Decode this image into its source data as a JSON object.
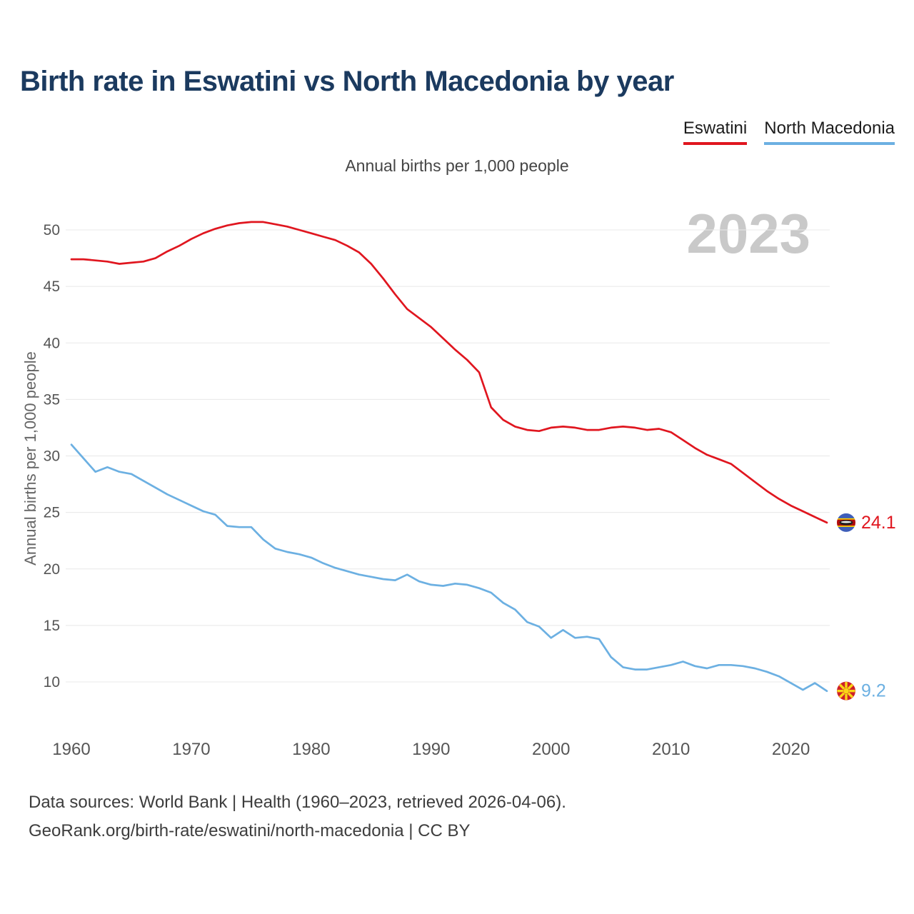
{
  "header": {
    "title": "Birth rate in Eswatini vs North Macedonia by year"
  },
  "legend": {
    "items": [
      {
        "label": "Eswatini",
        "color": "#e0161f"
      },
      {
        "label": "North Macedonia",
        "color": "#6cb0e2"
      }
    ]
  },
  "footer": {
    "line1": "Data sources: World Bank | Health (1960–2023, retrieved 2026-04-06).",
    "line2": "GeoRank.org/birth-rate/eswatini/north-macedonia | CC BY"
  },
  "chart_data": {
    "type": "line",
    "title": "Birth rate in Eswatini vs North Macedonia by year",
    "subtitle": "Annual births per 1,000 people",
    "ylabel": "Annual births per 1,000 people",
    "watermark": "2023",
    "grid": "horizontal",
    "legend_position": "top-right",
    "x_ticks": [
      1960,
      1970,
      1980,
      1990,
      2000,
      2010,
      2020
    ],
    "y_ticks": [
      10,
      15,
      20,
      25,
      30,
      35,
      40,
      45,
      50
    ],
    "ylim": [
      8,
      52
    ],
    "years": [
      1960,
      1961,
      1962,
      1963,
      1964,
      1965,
      1966,
      1967,
      1968,
      1969,
      1970,
      1971,
      1972,
      1973,
      1974,
      1975,
      1976,
      1977,
      1978,
      1979,
      1980,
      1981,
      1982,
      1983,
      1984,
      1985,
      1986,
      1987,
      1988,
      1989,
      1990,
      1991,
      1992,
      1993,
      1994,
      1995,
      1996,
      1997,
      1998,
      1999,
      2000,
      2001,
      2002,
      2003,
      2004,
      2005,
      2006,
      2007,
      2008,
      2009,
      2010,
      2011,
      2012,
      2013,
      2014,
      2015,
      2016,
      2017,
      2018,
      2019,
      2020,
      2021,
      2022,
      2023
    ],
    "series": [
      {
        "name": "Eswatini",
        "color": "#e0161f",
        "flag": "eswatini",
        "end_value": 24.1,
        "end_label": "24.1",
        "values": [
          47.4,
          47.4,
          47.3,
          47.2,
          47.0,
          47.1,
          47.2,
          47.5,
          48.1,
          48.6,
          49.2,
          49.7,
          50.1,
          50.4,
          50.6,
          50.7,
          50.7,
          50.5,
          50.3,
          50.0,
          49.7,
          49.4,
          49.1,
          48.6,
          48.0,
          47.0,
          45.7,
          44.3,
          43.0,
          42.2,
          41.4,
          40.4,
          39.4,
          38.5,
          37.4,
          34.3,
          33.2,
          32.6,
          32.3,
          32.2,
          32.5,
          32.6,
          32.5,
          32.3,
          32.3,
          32.5,
          32.6,
          32.5,
          32.3,
          32.4,
          32.1,
          31.4,
          30.7,
          30.1,
          29.7,
          29.3,
          28.5,
          27.7,
          26.9,
          26.2,
          25.6,
          25.1,
          24.6,
          24.1
        ]
      },
      {
        "name": "North Macedonia",
        "color": "#6cb0e2",
        "flag": "north-macedonia",
        "end_value": 9.2,
        "end_label": "9.2",
        "values": [
          31.0,
          29.8,
          28.6,
          29.0,
          28.6,
          28.4,
          27.8,
          27.2,
          26.6,
          26.1,
          25.6,
          25.1,
          24.8,
          23.8,
          23.7,
          23.7,
          22.6,
          21.8,
          21.5,
          21.3,
          21.0,
          20.5,
          20.1,
          19.8,
          19.5,
          19.3,
          19.1,
          19.0,
          19.5,
          18.9,
          18.6,
          18.5,
          18.7,
          18.6,
          18.3,
          17.9,
          17.0,
          16.4,
          15.3,
          14.9,
          13.9,
          14.6,
          13.9,
          14.0,
          13.8,
          12.2,
          11.3,
          11.1,
          11.1,
          11.3,
          11.5,
          11.8,
          11.4,
          11.2,
          11.5,
          11.5,
          11.4,
          11.2,
          10.9,
          10.5,
          9.9,
          9.3,
          9.9,
          9.2
        ]
      }
    ]
  }
}
